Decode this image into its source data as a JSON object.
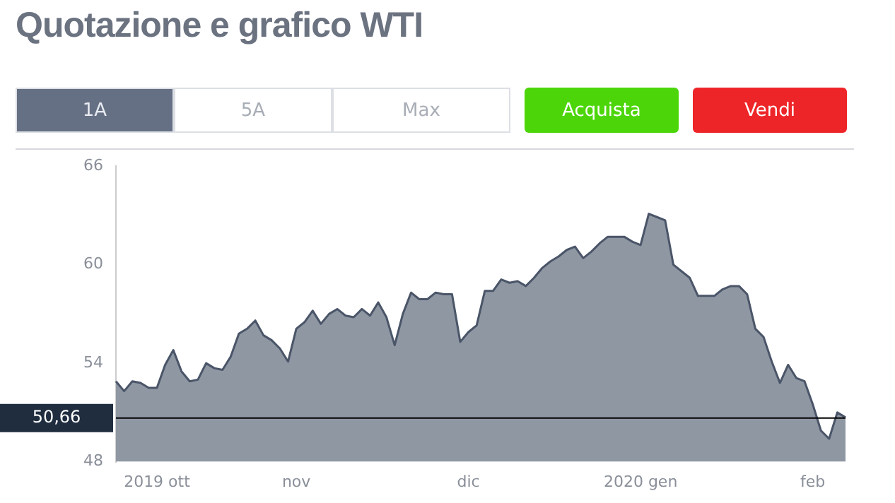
{
  "chart_data": {
    "type": "area",
    "title": "Quotazione e grafico WTI",
    "annotations": [
      "1A",
      "5A",
      "Max",
      "Acquista",
      "Vendi"
    ],
    "categories": [
      null,
      null,
      null,
      null,
      null,
      "2019 ott",
      null,
      null,
      null,
      null,
      null,
      null,
      null,
      null,
      null,
      null,
      null,
      null,
      null,
      null,
      null,
      null,
      "nov",
      null,
      null,
      null,
      null,
      null,
      null,
      null,
      null,
      null,
      null,
      null,
      null,
      null,
      null,
      null,
      null,
      null,
      null,
      null,
      null,
      "dic",
      null,
      null,
      null,
      null,
      null,
      null,
      null,
      null,
      null,
      null,
      null,
      null,
      null,
      null,
      null,
      null,
      null,
      null,
      null,
      null,
      "2020 gen",
      null,
      null,
      null,
      null,
      null,
      null,
      null,
      null,
      null,
      null,
      null,
      null,
      null,
      null,
      null,
      null,
      null,
      null,
      null,
      null,
      "feb",
      null,
      null,
      null,
      null
    ],
    "series": [
      {
        "color": "#4a5568",
        "values": [
          52.9,
          52.3,
          52.9,
          52.8,
          52.5,
          52.5,
          53.9,
          54.8,
          53.5,
          52.9,
          53.0,
          54.0,
          53.7,
          53.6,
          54.4,
          55.8,
          56.1,
          56.6,
          55.7,
          55.4,
          54.9,
          54.1,
          56.1,
          56.5,
          57.2,
          56.4,
          57.0,
          57.3,
          56.9,
          56.8,
          57.3,
          56.9,
          57.7,
          56.8,
          55.1,
          57.0,
          58.3,
          57.9,
          57.9,
          58.3,
          58.2,
          58.2,
          55.3,
          55.9,
          56.3,
          58.4,
          58.4,
          59.1,
          58.9,
          59.0,
          58.7,
          59.2,
          59.8,
          60.2,
          60.5,
          60.9,
          61.1,
          60.4,
          60.8,
          61.3,
          61.7,
          61.7,
          61.7,
          61.4,
          61.2,
          63.1,
          62.9,
          62.7,
          60.0,
          59.6,
          59.2,
          58.1,
          58.1,
          58.1,
          58.5,
          58.7,
          58.7,
          58.2,
          56.1,
          55.6,
          54.1,
          52.8,
          53.9,
          53.1,
          52.9,
          51.5,
          49.9,
          49.4,
          51.0,
          50.7
        ]
      }
    ],
    "ylim": [
      48,
      66
    ],
    "yticks": [
      48,
      54,
      60,
      66
    ],
    "grid": false,
    "legend": false,
    "ref_lines": [
      {
        "axis": "y",
        "value": 50.66,
        "label": "50,66",
        "color": "#000000"
      }
    ]
  }
}
